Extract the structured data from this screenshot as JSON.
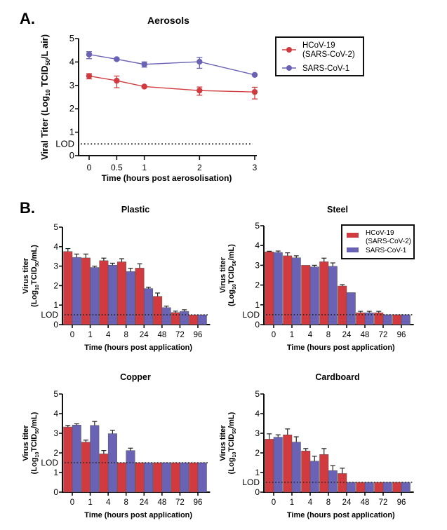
{
  "colors": {
    "sars_cov_2": "#d13b40",
    "sars_cov_1": "#6a63b5",
    "axis": "#111111"
  },
  "panel_labels": {
    "a": "A.",
    "b": "B."
  },
  "chart_data": [
    {
      "id": "aerosols",
      "type": "line",
      "title": "Aerosols",
      "xlabel": "Time (hours post aerosolisation)",
      "ylabel": "Viral Titer (Log10 TCID50/L air)",
      "ylabel_parts": {
        "pre": "Viral Titer (Log",
        "sub1": "10",
        "mid": " TCID",
        "sub2": "50",
        "post": "/L air)"
      },
      "x": [
        0,
        0.5,
        1,
        2,
        3
      ],
      "x_tick_labels": [
        "0",
        "0.5",
        "1",
        "2",
        "3"
      ],
      "ylim": [
        0,
        5
      ],
      "y_ticks": [
        0,
        1,
        2,
        3,
        4,
        5
      ],
      "lod": {
        "label": "LOD",
        "value": 0.5
      },
      "legend": {
        "placement": "right",
        "entries": [
          "HCoV-19\n(SARS-CoV-2)",
          "SARS-CoV-1"
        ]
      },
      "series": [
        {
          "name": "HCoV-19 (SARS-CoV-2)",
          "color_key": "sars_cov_2",
          "values": [
            3.4,
            3.2,
            2.95,
            2.78,
            2.72
          ],
          "err_hi": [
            0.1,
            0.2,
            0.03,
            0.15,
            0.2
          ],
          "err_lo": [
            0.12,
            0.3,
            0.03,
            0.2,
            0.3
          ]
        },
        {
          "name": "SARS-CoV-1",
          "color_key": "sars_cov_1",
          "values": [
            4.32,
            4.12,
            3.9,
            4.01,
            3.45
          ],
          "err_hi": [
            0.12,
            0.05,
            0.1,
            0.18,
            0.03
          ],
          "err_lo": [
            0.18,
            0.05,
            0.12,
            0.28,
            0.03
          ]
        }
      ]
    },
    {
      "id": "plastic",
      "type": "bar",
      "title": "Plastic",
      "xlabel": "Time (hours post application)",
      "ylabel_line1": "Virus titer",
      "ylabel_parts": {
        "pre": "(Log",
        "sub1": "10",
        "mid": "TCID",
        "sub2": "50",
        "post": "/mL)"
      },
      "categories": [
        "0",
        "1",
        "4",
        "8",
        "24",
        "48",
        "72",
        "96"
      ],
      "ylim": [
        0,
        5
      ],
      "y_ticks": [
        0,
        1,
        2,
        3,
        4,
        5
      ],
      "lod": {
        "label": "LOD",
        "value": 0.5
      },
      "series": [
        {
          "name": "HCoV-19 (SARS-CoV-2)",
          "color_key": "sars_cov_2",
          "values": [
            3.75,
            3.42,
            3.28,
            3.22,
            2.9,
            1.45,
            0.62,
            0.5
          ],
          "err": [
            0.15,
            0.2,
            0.13,
            0.16,
            0.22,
            0.17,
            0.07,
            0
          ]
        },
        {
          "name": "SARS-CoV-1",
          "color_key": "sars_cov_1",
          "values": [
            3.45,
            2.93,
            3.05,
            2.72,
            1.85,
            0.87,
            0.68,
            0.5
          ],
          "err": [
            0.17,
            0.07,
            0.1,
            0.17,
            0.07,
            0.08,
            0.08,
            0
          ]
        }
      ]
    },
    {
      "id": "steel",
      "type": "bar",
      "title": "Steel",
      "xlabel": "Time (hours post application)",
      "ylabel_line1": "Virus titer",
      "ylabel_parts": {
        "pre": "(Log",
        "sub1": "10",
        "mid": "TCID",
        "sub2": "50",
        "post": "/mL)"
      },
      "categories": [
        "0",
        "1",
        "4",
        "8",
        "24",
        "48",
        "72",
        "96"
      ],
      "ylim": [
        0,
        5
      ],
      "y_ticks": [
        0,
        1,
        2,
        3,
        4,
        5
      ],
      "lod": {
        "label": "LOD",
        "value": 0.5
      },
      "legend": {
        "placement": "top-right",
        "entries": [
          "HCoV-19\n(SARS-CoV-2)",
          "SARS-CoV-1"
        ]
      },
      "series": [
        {
          "name": "HCoV-19 (SARS-CoV-2)",
          "color_key": "sars_cov_2",
          "values": [
            3.68,
            3.48,
            3.0,
            3.18,
            1.95,
            0.6,
            0.6,
            0.5
          ],
          "err": [
            0.03,
            0.15,
            0,
            0.18,
            0.07,
            0.07,
            0.07,
            0
          ]
        },
        {
          "name": "SARS-CoV-1",
          "color_key": "sars_cov_1",
          "values": [
            3.65,
            3.38,
            2.92,
            2.95,
            1.62,
            0.6,
            0.5,
            0.5
          ],
          "err": [
            0.07,
            0.1,
            0.08,
            0.17,
            0,
            0.07,
            0,
            0
          ]
        }
      ]
    },
    {
      "id": "copper",
      "type": "bar",
      "title": "Copper",
      "xlabel": "Time (hours post application)",
      "ylabel_line1": "Virus titer",
      "ylabel_parts": {
        "pre": "(Log",
        "sub1": "10",
        "mid": "TCID",
        "sub2": "50",
        "post": "/mL)"
      },
      "categories": [
        "0",
        "1",
        "4",
        "8",
        "24",
        "48",
        "72",
        "96"
      ],
      "ylim": [
        0,
        5
      ],
      "y_ticks": [
        0,
        1,
        2,
        3,
        4,
        5
      ],
      "lod": {
        "label": "LOD",
        "value": 1.5
      },
      "series": [
        {
          "name": "HCoV-19 (SARS-CoV-2)",
          "color_key": "sars_cov_2",
          "values": [
            3.32,
            2.55,
            1.95,
            1.5,
            1.5,
            1.5,
            1.5,
            1.5
          ],
          "err": [
            0.08,
            0.1,
            0.17,
            0,
            0,
            0,
            0,
            0
          ]
        },
        {
          "name": "SARS-CoV-1",
          "color_key": "sars_cov_1",
          "values": [
            3.42,
            3.4,
            2.98,
            2.12,
            1.5,
            1.5,
            1.5,
            1.5
          ],
          "err": [
            0.06,
            0.2,
            0.17,
            0.12,
            0,
            0,
            0,
            0
          ]
        }
      ]
    },
    {
      "id": "cardboard",
      "type": "bar",
      "title": "Cardboard",
      "xlabel": "Time (hours post application)",
      "ylabel_line1": "Virus titer",
      "ylabel_parts": {
        "pre": "(Log",
        "sub1": "10",
        "mid": "TCID",
        "sub2": "50",
        "post": "/mL)"
      },
      "categories": [
        "0",
        "1",
        "4",
        "8",
        "24",
        "48",
        "72",
        "96"
      ],
      "ylim": [
        0,
        5
      ],
      "y_ticks": [
        0,
        1,
        2,
        3,
        4,
        5
      ],
      "lod": {
        "label": "LOD",
        "value": 0.5
      },
      "series": [
        {
          "name": "HCoV-19 (SARS-CoV-2)",
          "color_key": "sars_cov_2",
          "values": [
            2.7,
            2.92,
            2.1,
            1.92,
            0.95,
            0.5,
            0.5,
            0.5
          ],
          "err": [
            0.27,
            0.3,
            0.12,
            0.3,
            0.27,
            0,
            0,
            0
          ]
        },
        {
          "name": "SARS-CoV-1",
          "color_key": "sars_cov_1",
          "values": [
            2.8,
            2.55,
            1.58,
            1.1,
            0.5,
            0.5,
            0.5,
            0.5
          ],
          "err": [
            0.12,
            0.27,
            0.25,
            0.25,
            0,
            0,
            0,
            0
          ]
        }
      ]
    }
  ]
}
